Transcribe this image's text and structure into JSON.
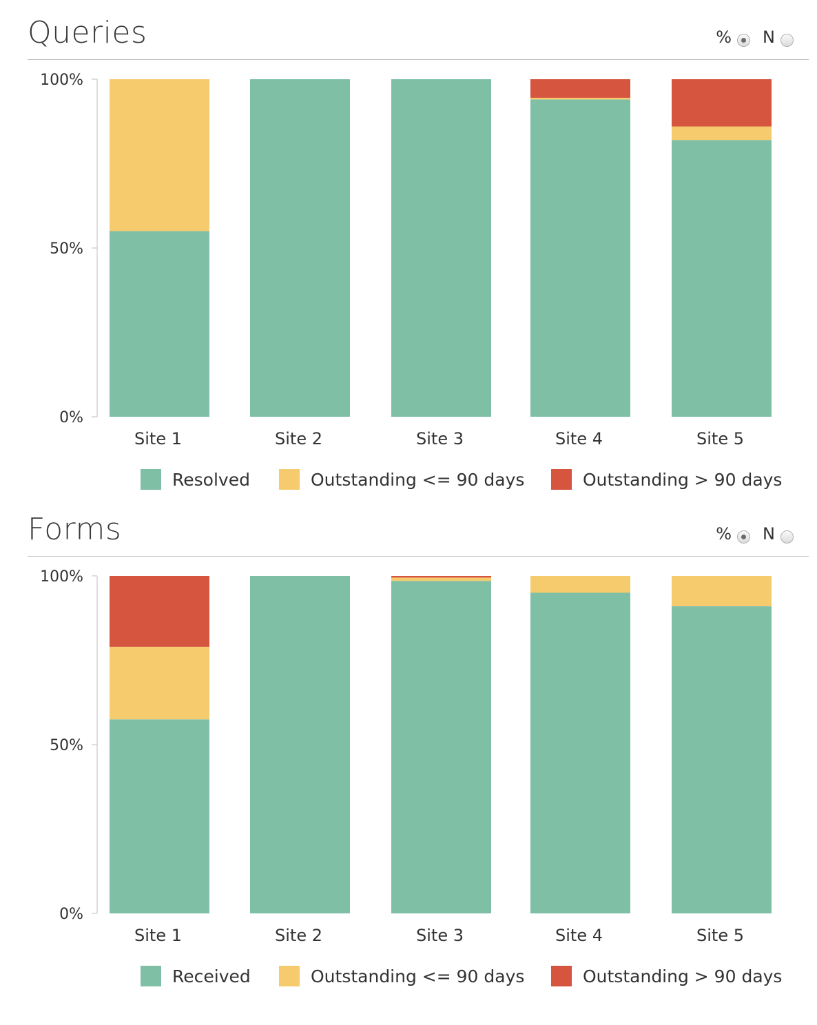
{
  "toggle": {
    "percent_label": "%",
    "n_label": "N",
    "selected": "%"
  },
  "colors": {
    "resolved": "#7fbfa6",
    "outstanding_le_90": "#f5cb6e",
    "outstanding_gt_90": "#d5553f",
    "axis": "#bdbdbd"
  },
  "chart_data": [
    {
      "id": "queries",
      "type": "bar",
      "stacked": true,
      "title": "Queries",
      "categories": [
        "Site 1",
        "Site 2",
        "Site 3",
        "Site 4",
        "Site 5"
      ],
      "ylim": [
        0,
        100
      ],
      "yticks": [
        "0%",
        "50%",
        "100%"
      ],
      "series": [
        {
          "name": "Resolved",
          "color_key": "resolved",
          "values": [
            55,
            100,
            100,
            94,
            82
          ]
        },
        {
          "name": "Outstanding <= 90 days",
          "color_key": "outstanding_le_90",
          "values": [
            45,
            0,
            0,
            0.5,
            4
          ]
        },
        {
          "name": "Outstanding > 90 days",
          "color_key": "outstanding_gt_90",
          "values": [
            0,
            0,
            0,
            5.5,
            14
          ]
        }
      ],
      "legend_position": "bottom"
    },
    {
      "id": "forms",
      "type": "bar",
      "stacked": true,
      "title": "Forms",
      "categories": [
        "Site 1",
        "Site 2",
        "Site 3",
        "Site 4",
        "Site 5"
      ],
      "ylim": [
        0,
        100
      ],
      "yticks": [
        "0%",
        "50%",
        "100%"
      ],
      "series": [
        {
          "name": "Received",
          "color_key": "resolved",
          "values": [
            57.5,
            100,
            98.5,
            95,
            91
          ]
        },
        {
          "name": "Outstanding <= 90 days",
          "color_key": "outstanding_le_90",
          "values": [
            21.5,
            0,
            1,
            5,
            9
          ]
        },
        {
          "name": "Outstanding > 90 days",
          "color_key": "outstanding_gt_90",
          "values": [
            21,
            0,
            0.5,
            0,
            0
          ]
        }
      ],
      "legend_position": "bottom"
    }
  ]
}
